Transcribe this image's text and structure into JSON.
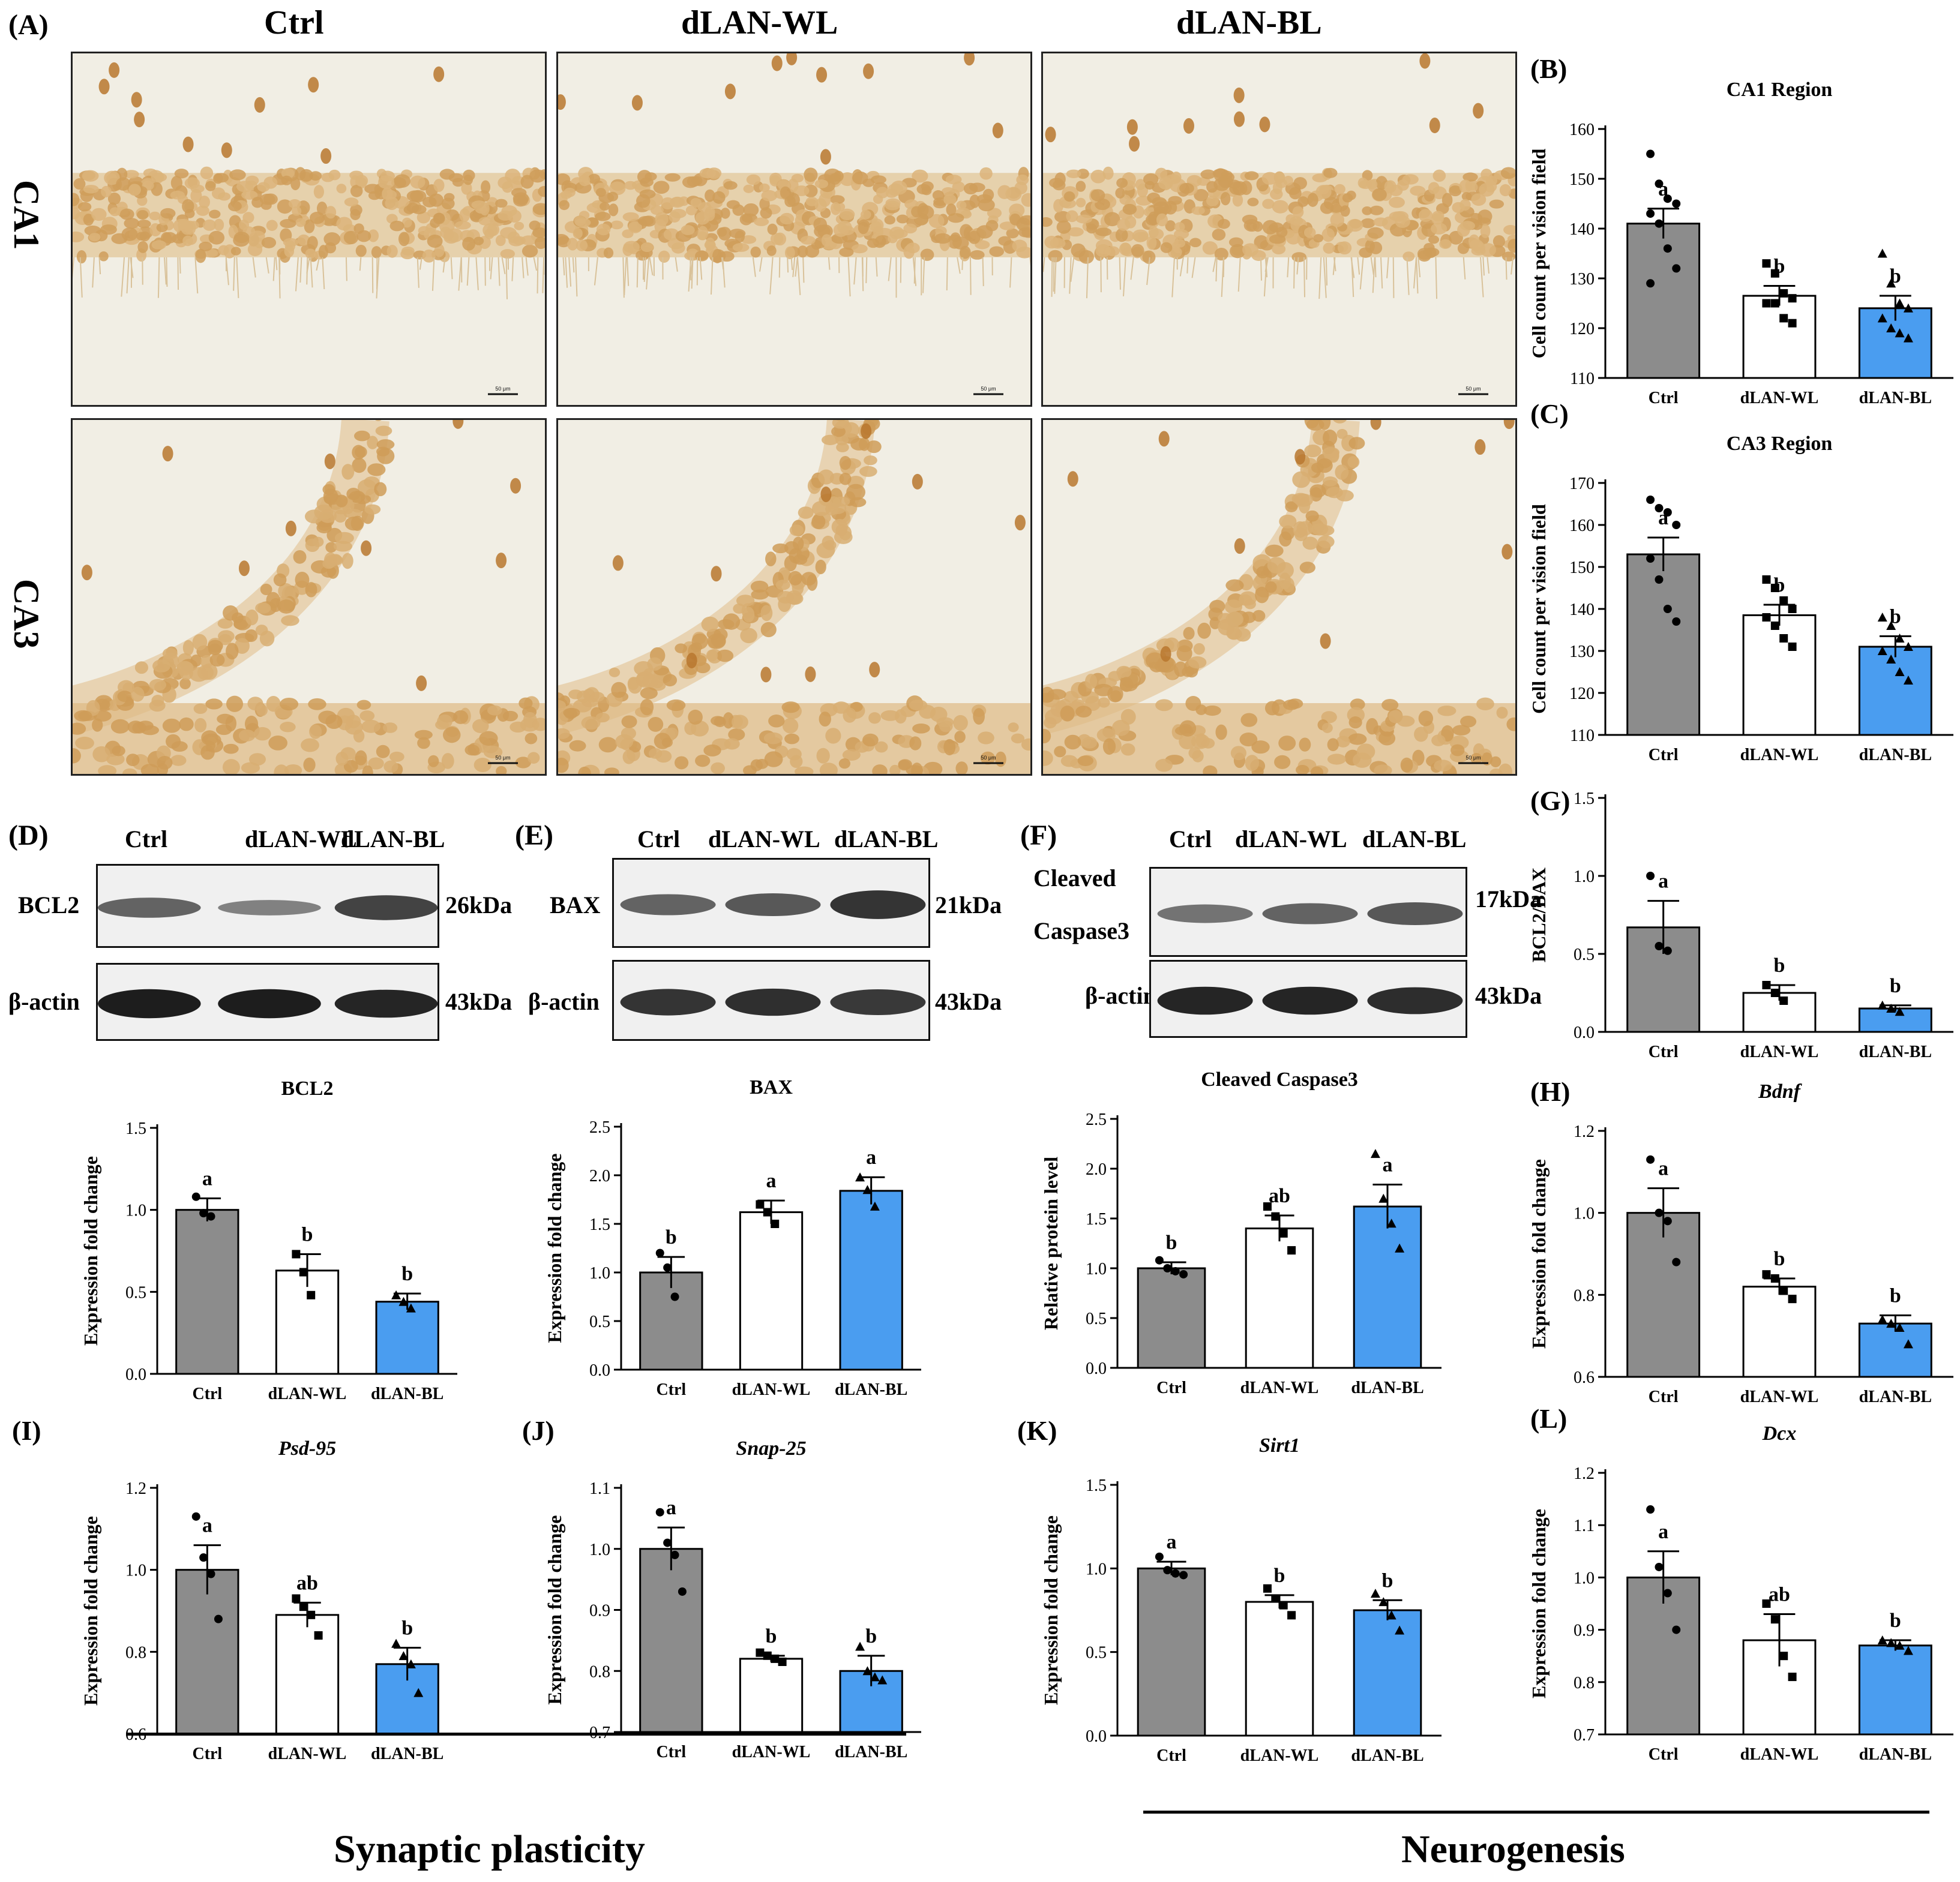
{
  "figure": {
    "panel_letters": [
      "(A)",
      "(B)",
      "(C)",
      "(D)",
      "(E)",
      "(F)",
      "(G)",
      "(H)",
      "(I)",
      "(J)",
      "(K)",
      "(L)"
    ],
    "histology": {
      "columns": [
        "Ctrl",
        "dLAN-WL",
        "dLAN-BL"
      ],
      "rows": [
        "CA1",
        "CA3"
      ],
      "scale_label": "50 μm"
    },
    "blots": {
      "D": {
        "lanes": [
          "Ctrl",
          "dLAN-WL",
          "dLAN-BL"
        ],
        "bands": [
          {
            "label": "BCL2",
            "kda": "26kDa"
          },
          {
            "label": "β-actin",
            "kda": "43kDa"
          }
        ]
      },
      "E": {
        "lanes": [
          "Ctrl",
          "dLAN-WL",
          "dLAN-BL"
        ],
        "bands": [
          {
            "label": "BAX",
            "kda": "21kDa"
          },
          {
            "label": "β-actin",
            "kda": "43kDa"
          }
        ]
      },
      "F": {
        "lanes": [
          "Ctrl",
          "dLAN-WL",
          "dLAN-BL"
        ],
        "bands": [
          {
            "label": "Cleaved",
            "label2": "Caspase3",
            "kda": "17kDa"
          },
          {
            "label": "β-actin",
            "kda": "43kDa"
          }
        ]
      }
    },
    "sections": [
      {
        "label": "Synaptic plasticity"
      },
      {
        "label": "Neurogenesis"
      }
    ],
    "colors": {
      "ctrl": "#8c8c8c",
      "wl": "#ffffff",
      "bl": "#4a9df0"
    }
  },
  "chart_data": [
    {
      "id": "B",
      "type": "bar",
      "title": "CA1 Region",
      "title_italic": false,
      "ylabel": "Cell count per vision field",
      "categories": [
        "Ctrl",
        "dLAN-WL",
        "dLAN-BL"
      ],
      "values": [
        141,
        126.5,
        124
      ],
      "errors": [
        3,
        2,
        2.5
      ],
      "ylim": [
        110,
        160
      ],
      "yticks": [
        "110",
        "120",
        "130",
        "140",
        "150",
        "160"
      ],
      "letters": [
        "a",
        "b",
        "b"
      ],
      "points": [
        [
          155,
          149,
          146,
          145,
          143,
          141,
          136,
          132,
          129
        ],
        [
          133,
          131,
          127,
          126,
          125,
          125,
          122,
          121
        ],
        [
          135,
          129,
          125,
          124,
          122,
          120,
          119,
          118
        ]
      ]
    },
    {
      "id": "C",
      "type": "bar",
      "title": "CA3 Region",
      "title_italic": false,
      "ylabel": "Cell count per vision field",
      "categories": [
        "Ctrl",
        "dLAN-WL",
        "dLAN-BL"
      ],
      "values": [
        153,
        138.5,
        131
      ],
      "errors": [
        4,
        2.5,
        2.5
      ],
      "ylim": [
        110,
        170
      ],
      "yticks": [
        "110",
        "120",
        "130",
        "140",
        "150",
        "160",
        "170"
      ],
      "letters": [
        "a",
        "b",
        "b"
      ],
      "points": [
        [
          166,
          164,
          163,
          160,
          152,
          147,
          140,
          137
        ],
        [
          147,
          145,
          142,
          140,
          138,
          136,
          133,
          131
        ],
        [
          138,
          136,
          133,
          131,
          130,
          128,
          125,
          123
        ]
      ]
    },
    {
      "id": "G",
      "type": "bar",
      "title": "",
      "title_italic": false,
      "ylabel": "BCL2/BAX",
      "categories": [
        "Ctrl",
        "dLAN-WL",
        "dLAN-BL"
      ],
      "values": [
        0.67,
        0.25,
        0.15
      ],
      "errors": [
        0.17,
        0.05,
        0.02
      ],
      "ylim": [
        0,
        1.5
      ],
      "yticks": [
        "0.0",
        "0.5",
        "1.0",
        "1.5"
      ],
      "letters": [
        "a",
        "b",
        "b"
      ],
      "points": [
        [
          1.0,
          0.55,
          0.52
        ],
        [
          0.3,
          0.25,
          0.2
        ],
        [
          0.17,
          0.15,
          0.13
        ]
      ]
    },
    {
      "id": "D",
      "type": "bar",
      "title": "BCL2",
      "title_italic": false,
      "ylabel": "Expression fold change",
      "categories": [
        "Ctrl",
        "dLAN-WL",
        "dLAN-BL"
      ],
      "values": [
        1.0,
        0.63,
        0.44
      ],
      "errors": [
        0.07,
        0.1,
        0.05
      ],
      "ylim": [
        0,
        1.5
      ],
      "yticks": [
        "0.0",
        "0.5",
        "1.0",
        "1.5"
      ],
      "letters": [
        "a",
        "b",
        "b"
      ],
      "points": [
        [
          1.08,
          0.98,
          0.96
        ],
        [
          0.73,
          0.62,
          0.48
        ],
        [
          0.48,
          0.44,
          0.4
        ]
      ]
    },
    {
      "id": "E",
      "type": "bar",
      "title": "BAX",
      "title_italic": false,
      "ylabel": "Expression fold change",
      "categories": [
        "Ctrl",
        "dLAN-WL",
        "dLAN-BL"
      ],
      "values": [
        1.0,
        1.62,
        1.84
      ],
      "errors": [
        0.16,
        0.12,
        0.14
      ],
      "ylim": [
        0,
        2.5
      ],
      "yticks": [
        "0.0",
        "0.5",
        "1.0",
        "1.5",
        "2.0",
        "2.5"
      ],
      "letters": [
        "b",
        "a",
        "a"
      ],
      "points": [
        [
          1.2,
          1.05,
          0.75
        ],
        [
          1.7,
          1.62,
          1.5
        ],
        [
          1.98,
          1.85,
          1.68
        ]
      ]
    },
    {
      "id": "F",
      "type": "bar",
      "title": "Cleaved Caspase3",
      "title_italic": false,
      "ylabel": "Relative protein level",
      "categories": [
        "Ctrl",
        "dLAN-WL",
        "dLAN-BL"
      ],
      "values": [
        1.0,
        1.4,
        1.62
      ],
      "errors": [
        0.06,
        0.13,
        0.22
      ],
      "ylim": [
        0,
        2.5
      ],
      "yticks": [
        "0.0",
        "0.5",
        "1.0",
        "1.5",
        "2.0",
        "2.5"
      ],
      "letters": [
        "b",
        "ab",
        "a"
      ],
      "points": [
        [
          1.08,
          1.0,
          0.97,
          0.94
        ],
        [
          1.62,
          1.52,
          1.35,
          1.18
        ],
        [
          2.15,
          1.7,
          1.45,
          1.2
        ]
      ]
    },
    {
      "id": "H",
      "type": "bar",
      "title": "Bdnf",
      "title_italic": true,
      "ylabel": "Expression fold change",
      "categories": [
        "Ctrl",
        "dLAN-WL",
        "dLAN-BL"
      ],
      "values": [
        1.0,
        0.82,
        0.73
      ],
      "errors": [
        0.06,
        0.02,
        0.02
      ],
      "ylim": [
        0.6,
        1.2
      ],
      "yticks": [
        "0.6",
        "0.8",
        "1.0",
        "1.2"
      ],
      "letters": [
        "a",
        "b",
        "b"
      ],
      "points": [
        [
          1.13,
          1.0,
          0.98,
          0.88
        ],
        [
          0.85,
          0.84,
          0.81,
          0.79
        ],
        [
          0.74,
          0.73,
          0.72,
          0.68
        ]
      ]
    },
    {
      "id": "I",
      "type": "bar",
      "title": "Psd-95",
      "title_italic": true,
      "ylabel": "Expression fold change",
      "categories": [
        "Ctrl",
        "dLAN-WL",
        "dLAN-BL"
      ],
      "values": [
        1.0,
        0.89,
        0.77
      ],
      "errors": [
        0.06,
        0.03,
        0.04
      ],
      "ylim": [
        0.6,
        1.2
      ],
      "yticks": [
        "0.6",
        "0.8",
        "1.0",
        "1.2"
      ],
      "letters": [
        "a",
        "ab",
        "b"
      ],
      "points": [
        [
          1.13,
          1.03,
          0.99,
          0.88
        ],
        [
          0.93,
          0.91,
          0.89,
          0.84
        ],
        [
          0.82,
          0.79,
          0.77,
          0.7
        ]
      ]
    },
    {
      "id": "J",
      "type": "bar",
      "title": "Snap-25",
      "title_italic": true,
      "ylabel": "Expression fold change",
      "categories": [
        "Ctrl",
        "dLAN-WL",
        "dLAN-BL"
      ],
      "values": [
        1.0,
        0.82,
        0.8
      ],
      "errors": [
        0.035,
        0.005,
        0.025
      ],
      "ylim": [
        0.7,
        1.1
      ],
      "yticks": [
        "0.7",
        "0.8",
        "0.9",
        "1.0",
        "1.1"
      ],
      "letters": [
        "a",
        "b",
        "b"
      ],
      "points": [
        [
          1.06,
          1.01,
          0.99,
          0.93
        ],
        [
          0.83,
          0.825,
          0.82,
          0.815
        ],
        [
          0.84,
          0.8,
          0.79,
          0.785
        ]
      ]
    },
    {
      "id": "K",
      "type": "bar",
      "title": "Sirt1",
      "title_italic": true,
      "ylabel": "Expression fold change",
      "categories": [
        "Ctrl",
        "dLAN-WL",
        "dLAN-BL"
      ],
      "values": [
        1.0,
        0.8,
        0.75
      ],
      "errors": [
        0.04,
        0.04,
        0.06
      ],
      "ylim": [
        0,
        1.5
      ],
      "yticks": [
        "0.0",
        "0.5",
        "1.0",
        "1.5"
      ],
      "letters": [
        "a",
        "b",
        "b"
      ],
      "points": [
        [
          1.07,
          0.99,
          0.97,
          0.96
        ],
        [
          0.88,
          0.82,
          0.78,
          0.72
        ],
        [
          0.85,
          0.8,
          0.72,
          0.63
        ]
      ]
    },
    {
      "id": "L",
      "type": "bar",
      "title": "Dcx",
      "title_italic": true,
      "ylabel": "Expression fold change",
      "categories": [
        "Ctrl",
        "dLAN-WL",
        "dLAN-BL"
      ],
      "values": [
        1.0,
        0.88,
        0.87
      ],
      "errors": [
        0.05,
        0.05,
        0.01
      ],
      "ylim": [
        0.7,
        1.2
      ],
      "yticks": [
        "0.7",
        "0.8",
        "0.9",
        "1.0",
        "1.1",
        "1.2"
      ],
      "letters": [
        "a",
        "ab",
        "b"
      ],
      "points": [
        [
          1.13,
          1.02,
          0.97,
          0.9
        ],
        [
          0.95,
          0.92,
          0.85,
          0.81
        ],
        [
          0.88,
          0.875,
          0.87,
          0.86
        ]
      ]
    }
  ]
}
